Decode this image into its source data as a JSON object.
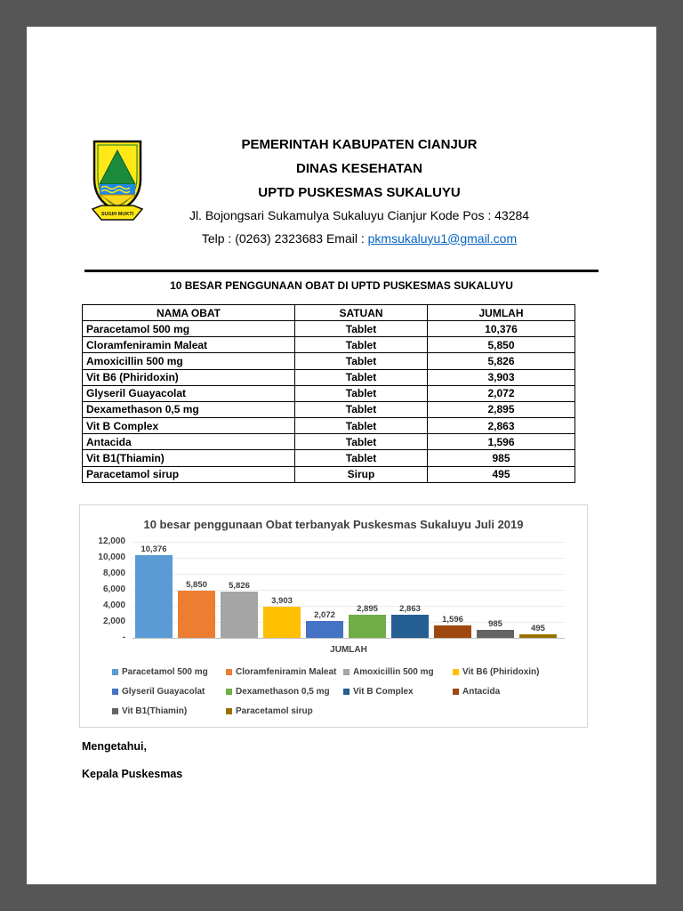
{
  "page": {
    "header": {
      "line1": "PEMERINTAH KABUPATEN CIANJUR",
      "line2": "DINAS KESEHATAN",
      "line3": "UPTD PUSKESMAS SUKALUYU",
      "address": "Jl. Bojongsari Sukamulya Sukaluyu Cianjur Kode Pos : 43284",
      "telp_label": "Telp : (0263) 2323683  Email : ",
      "email": "pkmsukaluyu1@gmail.com",
      "logo_ribbon": "SUGIH MUKTI"
    },
    "section_title": "10 BESAR PENGGUNAAN OBAT DI UPTD PUSKESMAS SUKALUYU",
    "table": {
      "headers": [
        "NAMA OBAT",
        "SATUAN",
        "JUMLAH"
      ],
      "rows": [
        [
          "Paracetamol 500 mg",
          "Tablet",
          "10,376"
        ],
        [
          "Cloramfeniramin Maleat",
          "Tablet",
          "5,850"
        ],
        [
          "Amoxicillin 500 mg",
          "Tablet",
          "5,826"
        ],
        [
          "Vit B6 (Phiridoxin)",
          "Tablet",
          "3,903"
        ],
        [
          "Glyseril Guayacolat",
          "Tablet",
          "2,072"
        ],
        [
          "Dexamethason 0,5 mg",
          "Tablet",
          "2,895"
        ],
        [
          "Vit B Complex",
          "Tablet",
          "2,863"
        ],
        [
          "Antacida",
          "Tablet",
          "1,596"
        ],
        [
          "Vit B1(Thiamin)",
          "Tablet",
          "985"
        ],
        [
          "Paracetamol sirup",
          "Sirup",
          "495"
        ]
      ]
    },
    "signature": {
      "line1": "Mengetahui,",
      "line2": "Kepala Puskesmas"
    }
  },
  "chart_data": {
    "type": "bar",
    "title": "10 besar penggunaan Obat terbanyak Puskesmas Sukaluyu Juli 2019",
    "xlabel": "JUMLAH",
    "ylabel": "",
    "ylim": [
      0,
      12000
    ],
    "ytick_labels": [
      "12,000",
      "10,000",
      "8,000",
      "6,000",
      "4,000",
      "2,000",
      "-"
    ],
    "categories": [
      "JUMLAH"
    ],
    "grid": true,
    "legend_position": "bottom",
    "series": [
      {
        "name": "Paracetamol 500 mg",
        "value": 10376,
        "label": "10,376",
        "color": "#5B9BD5"
      },
      {
        "name": "Cloramfeniramin Maleat",
        "value": 5850,
        "label": "5,850",
        "color": "#ED7D31"
      },
      {
        "name": "Amoxicillin 500 mg",
        "value": 5826,
        "label": "5,826",
        "color": "#A5A5A5"
      },
      {
        "name": "Vit B6 (Phiridoxin)",
        "value": 3903,
        "label": "3,903",
        "color": "#FFC000"
      },
      {
        "name": "Glyseril Guayacolat",
        "value": 2072,
        "label": "2,072",
        "color": "#4472C4"
      },
      {
        "name": "Dexamethason 0,5 mg",
        "value": 2895,
        "label": "2,895",
        "color": "#70AD47"
      },
      {
        "name": "Vit B Complex",
        "value": 2863,
        "label": "2,863",
        "color": "#255E91"
      },
      {
        "name": "Antacida",
        "value": 1596,
        "label": "1,596",
        "color": "#9E480E"
      },
      {
        "name": "Vit B1(Thiamin)",
        "value": 985,
        "label": "985",
        "color": "#636363"
      },
      {
        "name": "Paracetamol sirup",
        "value": 495,
        "label": "495",
        "color": "#997300"
      }
    ]
  }
}
